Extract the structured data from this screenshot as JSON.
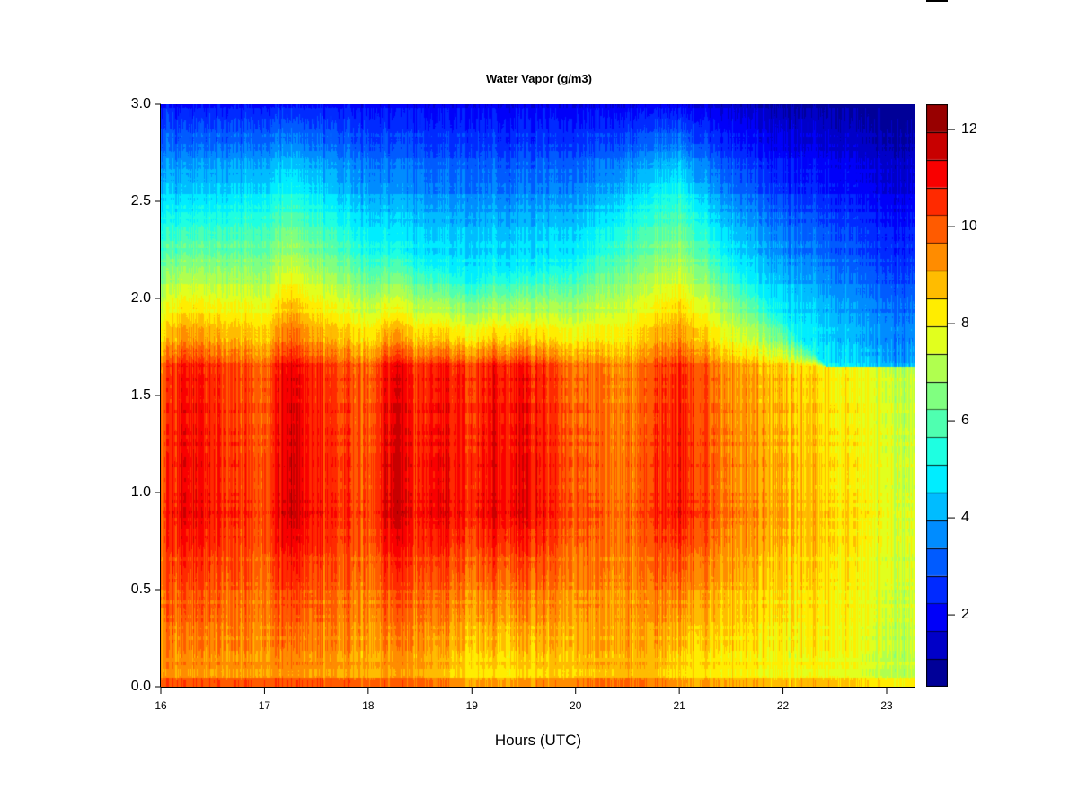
{
  "chart_data": {
    "type": "heatmap",
    "title": "Water Vapor (g/m3)",
    "xlabel": "Hours (UTC)",
    "ylabel": "",
    "xlim": [
      16,
      23.28
    ],
    "ylim": [
      0,
      3
    ],
    "x_ticks": [
      "16",
      "17",
      "18",
      "19",
      "20",
      "21",
      "22",
      "23"
    ],
    "y_ticks": [
      "0.0",
      "0.5",
      "1.0",
      "1.5",
      "2.0",
      "2.5",
      "3.0"
    ],
    "colorbar": {
      "range": [
        0.52,
        12.52
      ],
      "levels": 21,
      "ticks": [
        "2",
        "4",
        "6",
        "8",
        "10",
        "12"
      ],
      "palette": "jet"
    },
    "profile_series": {
      "time": [
        16.0,
        16.2,
        16.5,
        17.0,
        17.25,
        17.5,
        18.0,
        18.25,
        18.5,
        18.6,
        19.0,
        19.25,
        19.5,
        20.0,
        20.5,
        21.0,
        21.5,
        22.0,
        22.5,
        23.0,
        23.28
      ],
      "surface_value": [
        9.2,
        9.3,
        9.2,
        9.2,
        9.4,
        9.2,
        9.0,
        9.2,
        9.0,
        9.0,
        8.2,
        8.3,
        8.4,
        8.6,
        9.0,
        8.4,
        8.2,
        8.0,
        7.9,
        7.3,
        7.3
      ],
      "value_at_1km": [
        10.0,
        11.3,
        10.8,
        10.2,
        11.8,
        10.8,
        10.2,
        11.8,
        10.6,
        11.4,
        10.6,
        11.2,
        11.2,
        10.0,
        9.8,
        11.0,
        9.6,
        9.1,
        8.4,
        7.8,
        7.5
      ],
      "height_of_5gm3_km": [
        2.4,
        2.45,
        2.45,
        2.5,
        2.6,
        2.5,
        2.3,
        2.3,
        2.2,
        2.2,
        2.1,
        2.15,
        2.15,
        2.2,
        2.45,
        2.6,
        2.2,
        1.9,
        1.6,
        1.3,
        1.25
      ],
      "value_at_3km": [
        2.2,
        2.2,
        2.2,
        2.2,
        2.4,
        2.2,
        2.1,
        2.1,
        2.0,
        2.0,
        1.9,
        1.9,
        1.9,
        1.8,
        1.9,
        2.0,
        1.5,
        1.1,
        0.9,
        0.6,
        0.6
      ]
    }
  }
}
